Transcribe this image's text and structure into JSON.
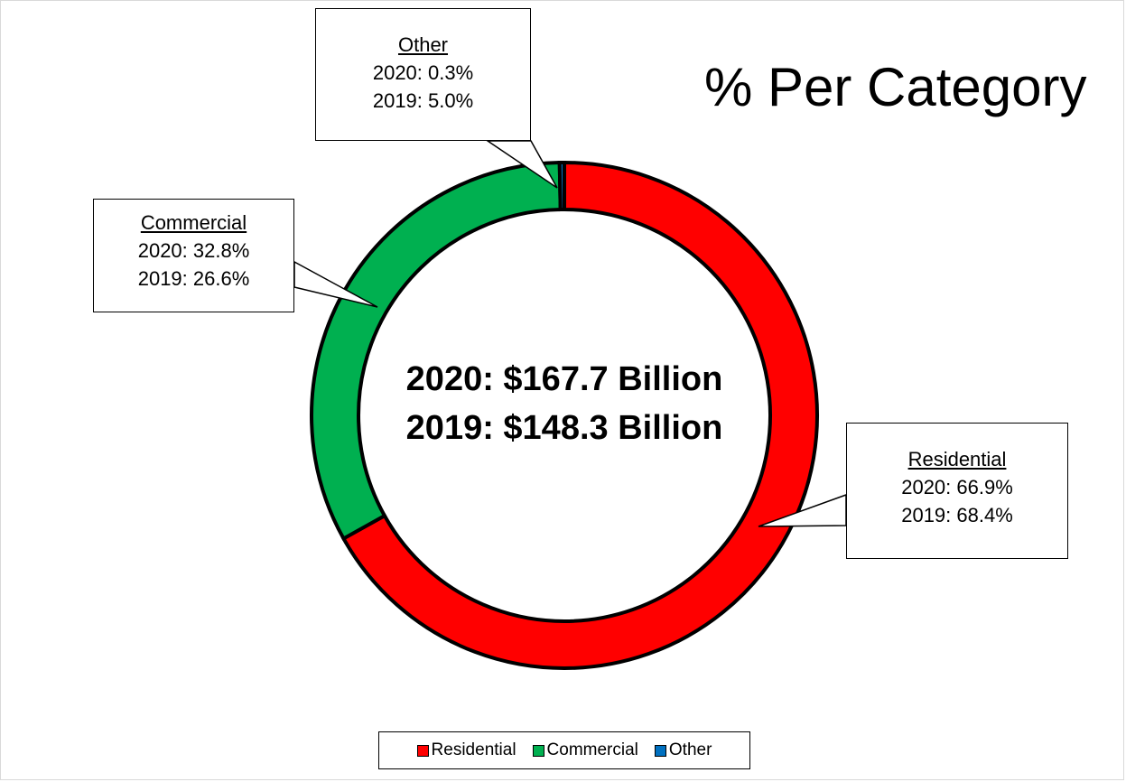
{
  "chart_data": {
    "type": "pie",
    "style": "donut",
    "title": "% Per Category",
    "center_text": [
      "2020: $167.7 Billion",
      "2019: $148.3 Billion"
    ],
    "categories": [
      "Residential",
      "Commercial",
      "Other"
    ],
    "series": [
      {
        "name": "2020",
        "values": [
          66.9,
          32.8,
          0.3
        ]
      },
      {
        "name": "2019",
        "values": [
          68.4,
          26.6,
          5.0
        ]
      }
    ],
    "plotted_series": "2020",
    "colors": [
      "#ff0000",
      "#00b050",
      "#0070c0"
    ],
    "labels": {
      "other": {
        "name": "Other",
        "line_2020": "2020: 0.3%",
        "line_2019": "2019: 5.0%"
      },
      "commercial": {
        "name": "Commercial",
        "line_2020": "2020: 32.8%",
        "line_2019": "2019: 26.6%"
      },
      "residential": {
        "name": "Residential",
        "line_2020": "2020: 66.9%",
        "line_2019": "2019: 68.4%"
      }
    },
    "legend": {
      "position": "bottom",
      "entries": [
        {
          "label": "Residential",
          "color": "#ff0000"
        },
        {
          "label": "Commercial",
          "color": "#00b050"
        },
        {
          "label": "Other",
          "color": "#0070c0"
        }
      ]
    }
  }
}
